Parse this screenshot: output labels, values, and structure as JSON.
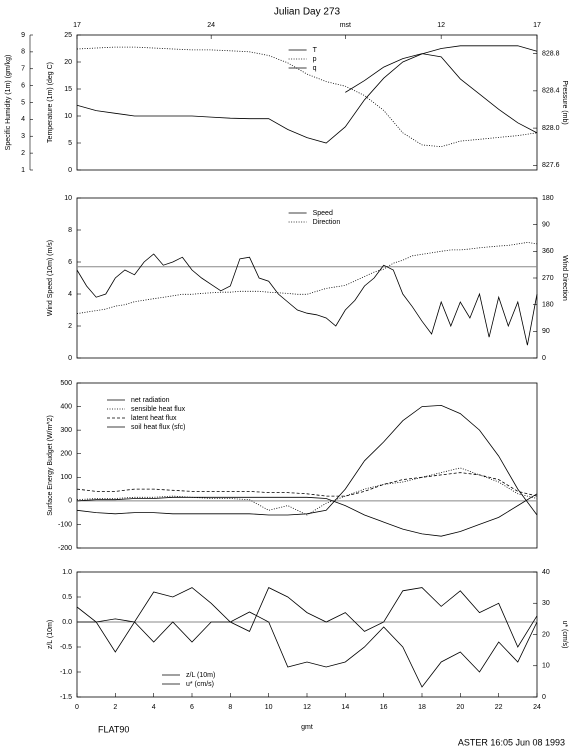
{
  "chart_data": [
    {
      "type": "line",
      "title": "Julian Day 273",
      "x2ticks": [
        {
          "value": 0,
          "label": "17"
        },
        {
          "value": 7,
          "label": "24"
        },
        {
          "value": 14,
          "label": "mst"
        },
        {
          "value": 19,
          "label": "12"
        },
        {
          "value": 24,
          "label": "17"
        }
      ],
      "x": [
        0,
        1,
        2,
        3,
        4,
        5,
        6,
        7,
        8,
        9,
        10,
        11,
        12,
        13,
        14,
        15,
        16,
        17,
        18,
        19,
        20,
        21,
        22,
        23,
        24
      ],
      "xlim": [
        0,
        24
      ],
      "ylabel": "Temperature (1m) (deg C)",
      "ylim": [
        0,
        25
      ],
      "yticks": [
        0,
        5,
        10,
        15,
        20,
        25
      ],
      "y2label": "Pressure (mb)",
      "y2lim": [
        827.55,
        829.0
      ],
      "y2ticks": [
        827.6,
        {
          "value": 828,
          "label": "828.0"
        },
        828.4,
        828.8
      ],
      "y3label": "Specific Humidity (1m) (gm/kg)",
      "y3lim": [
        1,
        9
      ],
      "y3ticks": [
        1,
        2,
        3,
        4,
        5,
        6,
        7,
        8,
        9
      ],
      "legend": "upper center",
      "series": [
        {
          "name": "T",
          "color": "#000000",
          "dash": "solid",
          "axis": "y",
          "values": [
            12,
            11,
            10.5,
            10,
            10,
            10,
            10,
            9.8,
            9.6,
            9.5,
            9.5,
            7.5,
            6,
            5,
            8,
            13,
            17,
            20,
            21.5,
            22.5,
            23,
            23,
            23,
            23,
            22
          ]
        },
        {
          "name": "p",
          "color": "#000000",
          "dash": "dotted",
          "axis": "y2",
          "values": [
            828.85,
            828.86,
            828.87,
            828.87,
            828.86,
            828.85,
            828.84,
            828.84,
            828.83,
            828.82,
            828.78,
            828.7,
            828.58,
            828.5,
            828.45,
            828.35,
            828.19,
            827.95,
            827.82,
            827.8,
            827.86,
            827.88,
            827.9,
            827.92,
            827.95
          ]
        },
        {
          "name": "q",
          "color": "#000000",
          "dash": "solid",
          "axis": "y3",
          "values": [
            null,
            null,
            null,
            null,
            null,
            null,
            null,
            null,
            null,
            null,
            null,
            null,
            null,
            null,
            5.6,
            6.3,
            7.1,
            7.6,
            7.9,
            7.7,
            6.4,
            5.5,
            4.6,
            3.8,
            3.2
          ]
        }
      ]
    },
    {
      "type": "line",
      "x": [
        0,
        0.5,
        1,
        1.5,
        2,
        2.5,
        3,
        3.5,
        4,
        4.5,
        5,
        5.5,
        6,
        6.5,
        7,
        7.5,
        8,
        8.5,
        9,
        9.5,
        10,
        10.5,
        11,
        11.5,
        12,
        12.5,
        13,
        13.5,
        14,
        14.5,
        15,
        15.5,
        16,
        16.5,
        17,
        17.5,
        18,
        18.5,
        19,
        19.5,
        20,
        20.5,
        21,
        21.5,
        22,
        22.5,
        23,
        23.5,
        24
      ],
      "xlim": [
        0,
        24
      ],
      "ylabel": "Wind Speed (10m) (m/s)",
      "ylim": [
        0,
        10
      ],
      "yticks": [
        0,
        2,
        4,
        6,
        8,
        10
      ],
      "y2label": "Wind Direction",
      "y2lim": [
        0,
        540
      ],
      "y2ticks": [
        0,
        90,
        180,
        270,
        360,
        {
          "value": 450,
          "label": "90"
        },
        {
          "value": 540,
          "label": "180"
        }
      ],
      "hline": 5.7,
      "legend": "upper center",
      "series": [
        {
          "name": "Speed",
          "color": "#000000",
          "dash": "solid",
          "axis": "y",
          "values": [
            5.5,
            4.5,
            3.8,
            4.0,
            5.0,
            5.5,
            5.2,
            6.0,
            6.5,
            5.8,
            6.0,
            6.3,
            5.5,
            5.0,
            4.6,
            4.2,
            4.5,
            6.2,
            6.3,
            5.0,
            4.8,
            4.0,
            3.5,
            3.0,
            2.8,
            2.7,
            2.5,
            2.0,
            3.0,
            3.6,
            4.5,
            5.0,
            5.8,
            5.5,
            4.0,
            3.2,
            2.3,
            1.5,
            3.5,
            2.0,
            3.5,
            2.5,
            4.0,
            1.3,
            3.8,
            2.0,
            3.5,
            0.8,
            4.0
          ]
        },
        {
          "name": "Direction",
          "color": "#000000",
          "dash": "dotted",
          "axis": "y2",
          "values": [
            150,
            155,
            160,
            165,
            175,
            180,
            190,
            195,
            200,
            205,
            210,
            215,
            215,
            218,
            220,
            222,
            222,
            225,
            225,
            225,
            222,
            220,
            218,
            215,
            215,
            225,
            235,
            240,
            245,
            260,
            275,
            290,
            300,
            320,
            330,
            345,
            350,
            355,
            360,
            365,
            365,
            368,
            372,
            375,
            378,
            380,
            385,
            390,
            385
          ]
        }
      ]
    },
    {
      "type": "line",
      "x": [
        0,
        1,
        2,
        3,
        4,
        5,
        6,
        7,
        8,
        9,
        10,
        11,
        12,
        13,
        14,
        15,
        16,
        17,
        18,
        19,
        20,
        21,
        22,
        23,
        24
      ],
      "xlim": [
        0,
        24
      ],
      "ylabel": "Surface Energy Budget (W/m^2)",
      "ylim": [
        -200,
        500
      ],
      "yticks": [
        -200,
        -100,
        0,
        100,
        200,
        300,
        400,
        500
      ],
      "hline": 0,
      "legend": "upper left",
      "series": [
        {
          "name": "net radiation",
          "color": "#000000",
          "dash": "solid",
          "axis": "y",
          "values": [
            -40,
            -50,
            -55,
            -50,
            -50,
            -55,
            -55,
            -55,
            -55,
            -55,
            -60,
            -60,
            -55,
            -40,
            50,
            170,
            250,
            340,
            400,
            405,
            370,
            300,
            190,
            50,
            -60
          ]
        },
        {
          "name": "sensible heat flux",
          "color": "#000000",
          "dash": "dotted",
          "axis": "y",
          "values": [
            5,
            10,
            10,
            15,
            15,
            20,
            15,
            10,
            10,
            5,
            -40,
            -20,
            -60,
            -10,
            20,
            50,
            70,
            80,
            100,
            120,
            140,
            110,
            80,
            30,
            10
          ]
        },
        {
          "name": "latent heat flux",
          "color": "#000000",
          "dash": "dashed",
          "axis": "y",
          "values": [
            50,
            40,
            40,
            50,
            50,
            45,
            40,
            40,
            40,
            40,
            35,
            35,
            30,
            20,
            20,
            40,
            70,
            90,
            100,
            110,
            120,
            110,
            90,
            40,
            20
          ]
        },
        {
          "name": "soil heat flux (sfc)",
          "color": "#000000",
          "dash": "solid",
          "axis": "y",
          "values": [
            0,
            5,
            5,
            10,
            10,
            15,
            15,
            15,
            15,
            15,
            15,
            15,
            15,
            10,
            -20,
            -60,
            -90,
            -120,
            -140,
            -150,
            -130,
            -100,
            -70,
            -20,
            30
          ]
        }
      ]
    },
    {
      "type": "line",
      "x": [
        0,
        1,
        2,
        3,
        4,
        5,
        6,
        7,
        8,
        9,
        10,
        11,
        12,
        13,
        14,
        15,
        16,
        17,
        18,
        19,
        20,
        21,
        22,
        23,
        24
      ],
      "xlim": [
        0,
        24
      ],
      "xticks": [
        0,
        2,
        4,
        6,
        8,
        10,
        12,
        14,
        16,
        18,
        20,
        22,
        24
      ],
      "xlabel": "gmt",
      "ylabel": "z/L (10m)",
      "ylim": [
        -1.5,
        1.0
      ],
      "yticks": [
        -1.5,
        {
          "value": -1,
          "label": "-1.0"
        },
        -0.5,
        {
          "value": 0,
          "label": "0.0"
        },
        0.5,
        {
          "value": 1,
          "label": "1.0"
        }
      ],
      "y2label": "u* (cm/s)",
      "y2lim": [
        0,
        40
      ],
      "y2ticks": [
        0,
        10,
        20,
        30,
        40
      ],
      "hline": 0,
      "legend": "lower left",
      "annotations": [
        "FLAT90",
        "ASTER 16:05 Jun 08 1993"
      ],
      "series": [
        {
          "name": "z/L (10m)",
          "color": "#000000",
          "dash": "solid",
          "axis": "y",
          "values": [
            0.3,
            0.0,
            -0.6,
            0.0,
            -0.4,
            0.0,
            -0.4,
            0.0,
            0.0,
            0.2,
            0.0,
            -0.9,
            -0.8,
            -0.9,
            -0.8,
            -0.5,
            -0.1,
            -0.5,
            -1.3,
            -0.8,
            -0.6,
            -1.0,
            -0.4,
            -0.8,
            0.0
          ]
        },
        {
          "name": "u* (cm/s)",
          "color": "#000000",
          "dash": "solid",
          "axis": "y2",
          "values": [
            24,
            24,
            25,
            24,
            33.6,
            32,
            35,
            30,
            24,
            21,
            35,
            32,
            27,
            24,
            27,
            21,
            24,
            34,
            35,
            29,
            34,
            27,
            30,
            16,
            26
          ]
        }
      ]
    }
  ]
}
